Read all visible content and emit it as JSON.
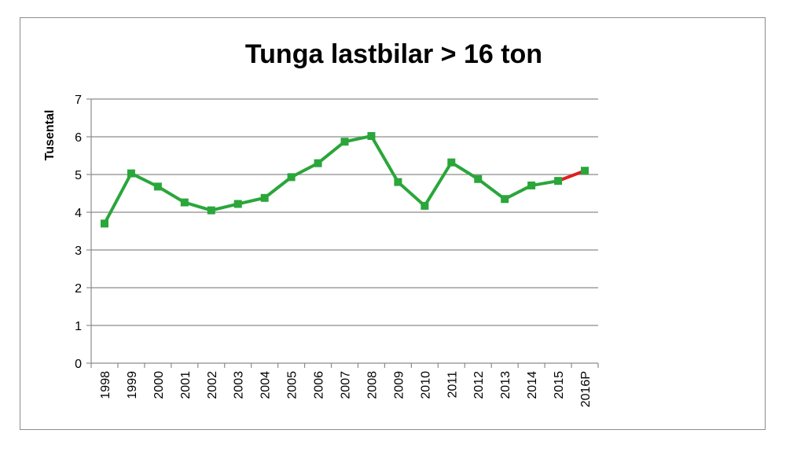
{
  "chart_data": {
    "type": "line",
    "title": "Tunga lastbilar > 16 ton",
    "xlabel": "",
    "ylabel": "Tusental",
    "ylim": [
      0,
      7
    ],
    "yticks": [
      0,
      1,
      2,
      3,
      4,
      5,
      6,
      7
    ],
    "grid": true,
    "legend": "none",
    "categories": [
      "1998",
      "1999",
      "2000",
      "2001",
      "2002",
      "2003",
      "2004",
      "2005",
      "2006",
      "2007",
      "2008",
      "2009",
      "2010",
      "2011",
      "2012",
      "2013",
      "2014",
      "2015",
      "2016P"
    ],
    "series": [
      {
        "values": [
          3.7,
          5.03,
          4.68,
          4.26,
          4.05,
          4.22,
          4.38,
          4.93,
          5.3,
          5.87,
          6.02,
          4.8,
          4.17,
          5.32,
          4.88,
          4.35,
          4.71,
          4.83,
          5.1
        ],
        "color": "#2aa63a",
        "forecast_color": "#e02020",
        "forecast_from_index": 17
      }
    ]
  }
}
